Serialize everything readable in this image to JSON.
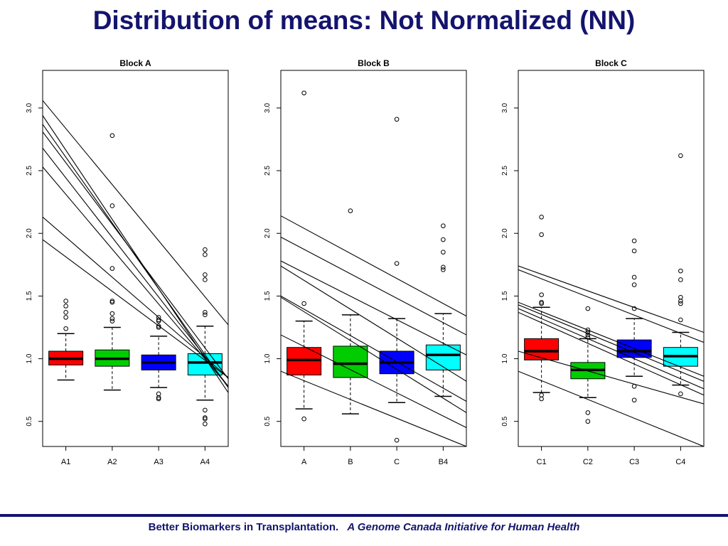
{
  "page": {
    "title": "Distribution of means: Not Normalized (NN)",
    "footer": {
      "text": "Better Biomarkers in Transplantation.",
      "tagline": "A Genome Canada Initiative for Human Health",
      "color": "#14146e"
    }
  },
  "chart_data": [
    {
      "type": "box",
      "title": "Block A",
      "ylim": [
        0.3,
        3.3
      ],
      "yticks": [
        "0.5",
        "1.0",
        "1.5",
        "2.0",
        "2.5",
        "3.0"
      ],
      "categories": [
        "A1",
        "A2",
        "A3",
        "A4"
      ],
      "boxes": [
        {
          "name": "A1",
          "color": "#ff0000",
          "whisker_low": 0.83,
          "q1": 0.95,
          "median": 1.0,
          "q3": 1.06,
          "whisker_high": 1.2,
          "outliers": [
            1.46,
            1.42,
            1.37,
            1.33,
            1.24
          ]
        },
        {
          "name": "A2",
          "color": "#00cd00",
          "whisker_low": 0.75,
          "q1": 0.94,
          "median": 1.0,
          "q3": 1.07,
          "whisker_high": 1.25,
          "outliers": [
            2.78,
            2.22,
            1.72,
            1.46,
            1.45,
            1.36,
            1.32,
            1.3
          ]
        },
        {
          "name": "A3",
          "color": "#0000ff",
          "whisker_low": 0.77,
          "q1": 0.91,
          "median": 0.97,
          "q3": 1.03,
          "whisker_high": 1.18,
          "outliers": [
            1.33,
            1.31,
            1.3,
            1.26,
            1.25,
            0.72,
            0.69,
            0.68
          ]
        },
        {
          "name": "A4",
          "color": "#00ffff",
          "whisker_low": 0.67,
          "q1": 0.87,
          "median": 0.97,
          "q3": 1.04,
          "whisker_high": 1.26,
          "outliers": [
            1.87,
            1.83,
            1.67,
            1.63,
            1.37,
            1.35,
            0.59,
            0.53,
            0.52,
            0.48
          ]
        }
      ],
      "trend_lines": [
        [
          3.06,
          1.27
        ],
        [
          2.94,
          0.73
        ],
        [
          2.87,
          0.77
        ],
        [
          2.81,
          0.84
        ],
        [
          2.68,
          0.78
        ],
        [
          2.53,
          0.78
        ],
        [
          2.13,
          0.85
        ],
        [
          1.95,
          0.85
        ]
      ]
    },
    {
      "type": "box",
      "title": "Block B",
      "ylim": [
        0.3,
        3.3
      ],
      "yticks": [
        "0.5",
        "1.0",
        "1.5",
        "2.0",
        "2.5",
        "3.0"
      ],
      "categories": [
        "A",
        "B",
        "C",
        "B4"
      ],
      "boxes": [
        {
          "name": "A",
          "color": "#ff0000",
          "whisker_low": 0.6,
          "q1": 0.87,
          "median": 0.99,
          "q3": 1.09,
          "whisker_high": 1.3,
          "outliers": [
            3.12,
            1.44,
            0.52
          ]
        },
        {
          "name": "B",
          "color": "#00cd00",
          "whisker_low": 0.56,
          "q1": 0.85,
          "median": 0.96,
          "q3": 1.1,
          "whisker_high": 1.35,
          "outliers": [
            2.18
          ]
        },
        {
          "name": "C",
          "color": "#0000ff",
          "whisker_low": 0.65,
          "q1": 0.88,
          "median": 0.97,
          "q3": 1.06,
          "whisker_high": 1.32,
          "outliers": [
            2.91,
            1.76,
            0.35
          ]
        },
        {
          "name": "B4",
          "color": "#00ffff",
          "whisker_low": 0.7,
          "q1": 0.91,
          "median": 1.03,
          "q3": 1.11,
          "whisker_high": 1.36,
          "outliers": [
            2.06,
            1.95,
            1.85,
            1.73,
            1.71
          ]
        }
      ],
      "trend_lines": [
        [
          2.14,
          1.34
        ],
        [
          1.97,
          1.19
        ],
        [
          1.78,
          1.03
        ],
        [
          1.74,
          0.82
        ],
        [
          1.5,
          0.66
        ],
        [
          1.49,
          0.57
        ],
        [
          1.19,
          0.45
        ],
        [
          0.9,
          0.3
        ]
      ]
    },
    {
      "type": "box",
      "title": "Block C",
      "ylim": [
        0.3,
        3.3
      ],
      "yticks": [
        "0.5",
        "1.0",
        "1.5",
        "2.0",
        "2.5",
        "3.0"
      ],
      "categories": [
        "C1",
        "C2",
        "C3",
        "C4"
      ],
      "boxes": [
        {
          "name": "C1",
          "color": "#ff0000",
          "whisker_low": 0.73,
          "q1": 0.99,
          "median": 1.06,
          "q3": 1.16,
          "whisker_high": 1.41,
          "outliers": [
            2.13,
            1.99,
            1.51,
            1.45,
            1.44,
            0.71,
            0.68
          ]
        },
        {
          "name": "C2",
          "color": "#00cd00",
          "whisker_low": 0.69,
          "q1": 0.84,
          "median": 0.91,
          "q3": 0.97,
          "whisker_high": 1.16,
          "outliers": [
            1.4,
            1.23,
            1.21,
            1.19,
            1.17,
            0.57,
            0.5
          ]
        },
        {
          "name": "C3",
          "color": "#0000ff",
          "whisker_low": 0.86,
          "q1": 1.01,
          "median": 1.06,
          "q3": 1.15,
          "whisker_high": 1.32,
          "outliers": [
            1.94,
            1.86,
            1.65,
            1.59,
            1.4,
            0.78,
            0.67
          ]
        },
        {
          "name": "C4",
          "color": "#00ffff",
          "whisker_low": 0.79,
          "q1": 0.94,
          "median": 1.02,
          "q3": 1.09,
          "whisker_high": 1.21,
          "outliers": [
            2.62,
            1.7,
            1.63,
            1.49,
            1.46,
            1.44,
            1.31,
            0.72
          ]
        }
      ],
      "trend_lines": [
        [
          1.74,
          1.21
        ],
        [
          1.71,
          1.13
        ],
        [
          1.45,
          0.86
        ],
        [
          1.43,
          0.82
        ],
        [
          1.4,
          0.76
        ],
        [
          1.37,
          0.71
        ],
        [
          1.06,
          0.64
        ],
        [
          0.9,
          0.3
        ]
      ]
    }
  ]
}
